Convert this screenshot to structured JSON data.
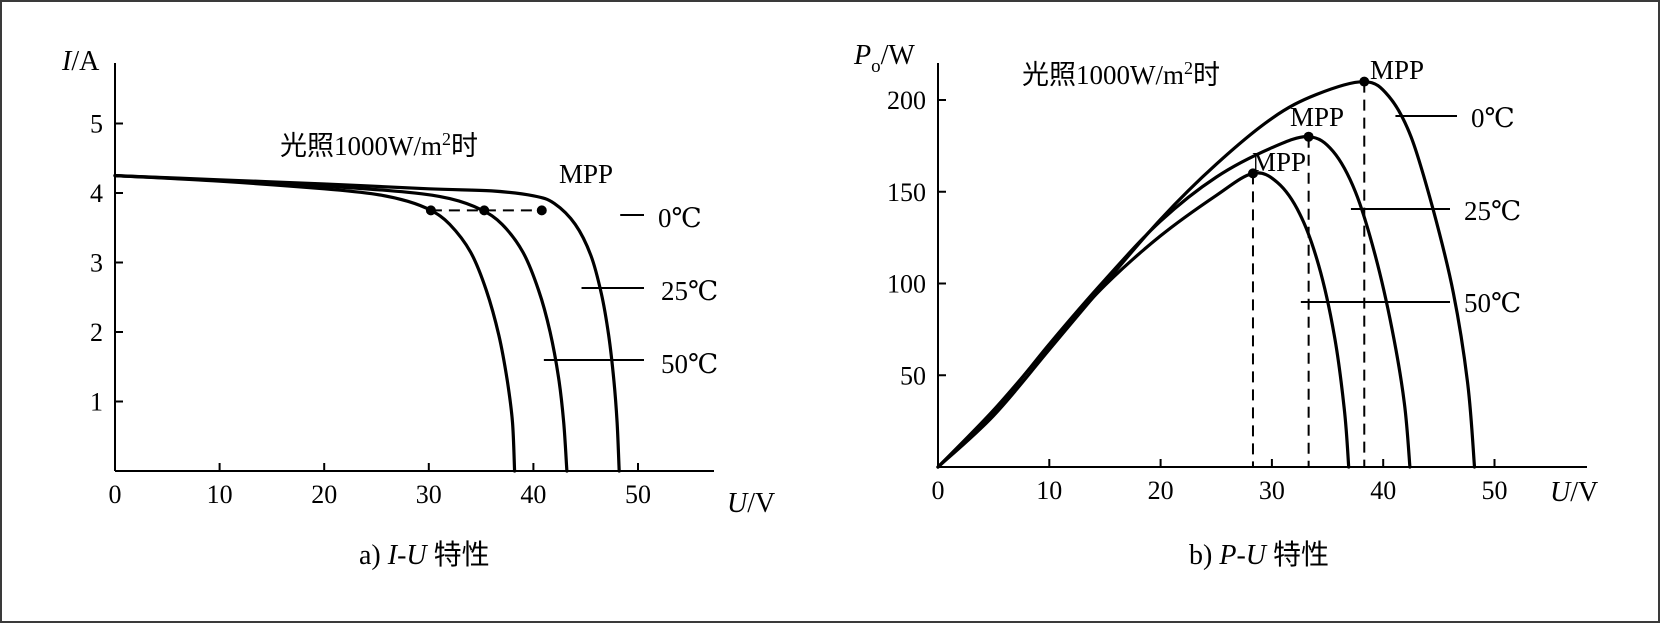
{
  "chart_data": [
    {
      "type": "line",
      "caption_prefix": "a)",
      "caption_formula_a": "I",
      "caption_dash": "-",
      "caption_formula_b": "U",
      "caption_suffix": "特性",
      "ylabel_var": "I",
      "ylabel_unit": "/A",
      "xlabel_var": "U",
      "xlabel_unit": "/V",
      "xlim": [
        0,
        58
      ],
      "ylim": [
        0,
        5.7
      ],
      "xticks": [
        0,
        10,
        20,
        30,
        40,
        50
      ],
      "yticks": [
        1,
        2,
        3,
        4,
        5
      ],
      "annotation": {
        "text": "光照1000W/m",
        "sup": "2",
        "suffix": "时"
      },
      "mpp_label": "MPP",
      "mpp_points": [
        [
          30.2,
          3.75
        ],
        [
          35.3,
          3.75
        ],
        [
          40.8,
          3.75
        ]
      ],
      "series": [
        {
          "name": "0℃",
          "points": [
            [
              0,
              4.25
            ],
            [
              10,
              4.19
            ],
            [
              20,
              4.13
            ],
            [
              30,
              4.06
            ],
            [
              36,
              4.03
            ],
            [
              40,
              3.96
            ],
            [
              42,
              3.85
            ],
            [
              44,
              3.55
            ],
            [
              45.5,
              3.1
            ],
            [
              46.5,
              2.55
            ],
            [
              47.2,
              1.95
            ],
            [
              47.7,
              1.3
            ],
            [
              48.0,
              0.7
            ],
            [
              48.2,
              0
            ]
          ]
        },
        {
          "name": "25℃",
          "points": [
            [
              0,
              4.25
            ],
            [
              10,
              4.18
            ],
            [
              20,
              4.1
            ],
            [
              28,
              4.01
            ],
            [
              32,
              3.92
            ],
            [
              35,
              3.76
            ],
            [
              37,
              3.55
            ],
            [
              39,
              3.15
            ],
            [
              40.5,
              2.6
            ],
            [
              41.6,
              2.0
            ],
            [
              42.4,
              1.35
            ],
            [
              42.9,
              0.7
            ],
            [
              43.2,
              0
            ]
          ]
        },
        {
          "name": "50℃",
          "points": [
            [
              0,
              4.25
            ],
            [
              10,
              4.17
            ],
            [
              20,
              4.06
            ],
            [
              25,
              3.98
            ],
            [
              28,
              3.88
            ],
            [
              30.2,
              3.75
            ],
            [
              32,
              3.55
            ],
            [
              34,
              3.15
            ],
            [
              35.5,
              2.6
            ],
            [
              36.7,
              1.95
            ],
            [
              37.5,
              1.3
            ],
            [
              38.0,
              0.7
            ],
            [
              38.2,
              0
            ]
          ]
        }
      ]
    },
    {
      "type": "line",
      "caption_prefix": "b)",
      "caption_formula_a": "P",
      "caption_dash": "-",
      "caption_formula_b": "U",
      "caption_suffix": "特性",
      "ylabel_var": "P",
      "ylabel_sub": "o",
      "ylabel_unit": "/W",
      "xlabel_var": "U",
      "xlabel_unit": "/V",
      "xlim": [
        0,
        58
      ],
      "ylim": [
        0,
        228
      ],
      "xticks": [
        0,
        10,
        20,
        30,
        40,
        50
      ],
      "yticks": [
        50,
        100,
        150,
        200
      ],
      "annotation": {
        "text": "光照1000W/m",
        "sup": "2",
        "suffix": "时"
      },
      "mpp_label": "MPP",
      "mpp_points": [
        [
          38.3,
          210
        ],
        [
          33.3,
          180
        ],
        [
          28.3,
          160
        ]
      ],
      "series": [
        {
          "name": "0℃",
          "points": [
            [
              0,
              0
            ],
            [
              5,
              28
            ],
            [
              10,
              64
            ],
            [
              15,
              100
            ],
            [
              20,
              135
            ],
            [
              25,
              165
            ],
            [
              30,
              190
            ],
            [
              34,
              203
            ],
            [
              38.3,
              210
            ],
            [
              40.5,
              202
            ],
            [
              42.5,
              180
            ],
            [
              44.5,
              140
            ],
            [
              46.3,
              95
            ],
            [
              47.6,
              45
            ],
            [
              48.2,
              0
            ]
          ]
        },
        {
          "name": "25℃",
          "points": [
            [
              0,
              0
            ],
            [
              5,
              30
            ],
            [
              10,
              67
            ],
            [
              15,
              102
            ],
            [
              20,
              134
            ],
            [
              25,
              158
            ],
            [
              30,
              174
            ],
            [
              33.3,
              180
            ],
            [
              35.5,
              172
            ],
            [
              37.5,
              150
            ],
            [
              39.3,
              115
            ],
            [
              40.8,
              75
            ],
            [
              41.9,
              35
            ],
            [
              42.4,
              0
            ]
          ]
        },
        {
          "name": "50℃",
          "points": [
            [
              0,
              0
            ],
            [
              5,
              31
            ],
            [
              10,
              66
            ],
            [
              15,
              99
            ],
            [
              20,
              126
            ],
            [
              25,
              148
            ],
            [
              28.3,
              160
            ],
            [
              30.5,
              155
            ],
            [
              32.5,
              138
            ],
            [
              34.2,
              110
            ],
            [
              35.6,
              72
            ],
            [
              36.5,
              32
            ],
            [
              36.9,
              0
            ]
          ]
        }
      ]
    }
  ]
}
